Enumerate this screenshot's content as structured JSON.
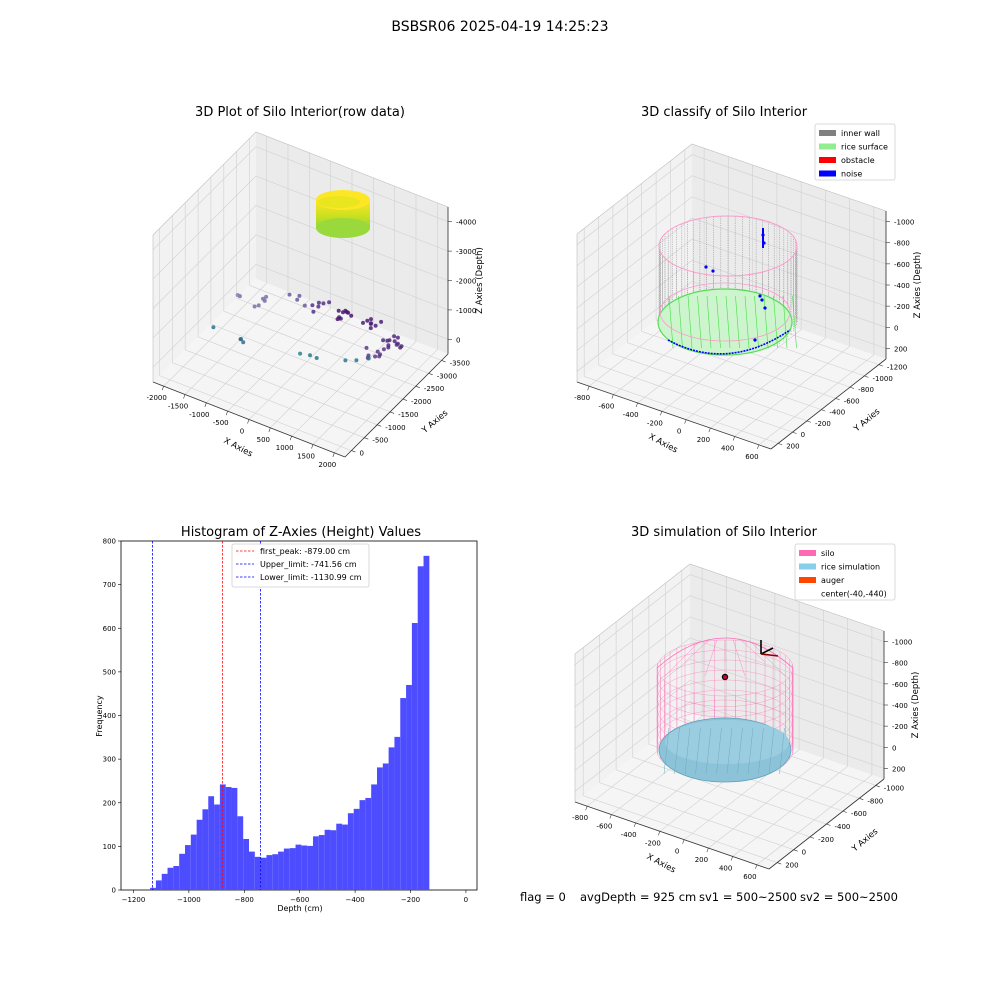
{
  "figure": {
    "suptitle": "BSBSR06 2025-04-19 14:25:23",
    "status_line": {
      "flag": "flag = 0",
      "avg_depth": "avgDepth = 925 cm",
      "sv1": "sv1 = 500~2500",
      "sv2": "sv2 = 500~2500"
    }
  },
  "chart_data": [
    {
      "type": "scatter",
      "kind": "3d",
      "title": "3D Plot of Silo Interior(row data)",
      "xlabel": "X Axies",
      "ylabel": "Y Axies",
      "zlabel": "Z Axies (Depth)",
      "x_ticks": [
        "-2000",
        "-1500",
        "-1000",
        "-500",
        "0",
        "500",
        "1000",
        "1500",
        "2000"
      ],
      "y_ticks": [
        "0",
        "-500",
        "-1000",
        "-1500",
        "-2000",
        "-2500",
        "-3000",
        "-3500"
      ],
      "z_ticks": [
        "0",
        "-1000",
        "-2000",
        "-3000",
        "-4000"
      ],
      "colormap": [
        "#440154",
        "#31688e",
        "#35b779",
        "#fde725"
      ]
    },
    {
      "type": "scatter",
      "kind": "3d",
      "title": "3D classify of Silo Interior",
      "xlabel": "X Axies",
      "ylabel": "Y Axies",
      "zlabel": "Z Axies (Depth)",
      "x_ticks": [
        "-800",
        "-600",
        "-400",
        "-200",
        "0",
        "200",
        "400",
        "600"
      ],
      "y_ticks": [
        "200",
        "0",
        "-200",
        "-400",
        "-600",
        "-800",
        "-1000",
        "-1200"
      ],
      "z_ticks": [
        "200",
        "0",
        "-200",
        "-400",
        "-600",
        "-800",
        "-1000"
      ],
      "legend": [
        {
          "label": "inner wall",
          "color": "#808080"
        },
        {
          "label": "rice surface",
          "color": "#90ee90"
        },
        {
          "label": "obstacle",
          "color": "#ff0000"
        },
        {
          "label": "noise",
          "color": "#0000ff"
        }
      ]
    },
    {
      "type": "bar",
      "kind": "histogram",
      "title": "Histogram of Z-Axies (Height) Values",
      "xlabel": "Depth (cm)",
      "ylabel": "Frequency",
      "xlim": [
        -1245,
        40
      ],
      "ylim": [
        0,
        800
      ],
      "x_ticks": [
        -1200,
        -1000,
        -800,
        -600,
        -400,
        -200,
        0
      ],
      "y_ticks": [
        0,
        100,
        200,
        300,
        400,
        500,
        600,
        700,
        800
      ],
      "bin_start": -1140,
      "bin_width": 21,
      "bar_color": "#4d4dff",
      "values": [
        5,
        22,
        37,
        51,
        55,
        83,
        103,
        127,
        161,
        185,
        215,
        196,
        242,
        236,
        234,
        169,
        117,
        88,
        76,
        74,
        80,
        82,
        88,
        95,
        96,
        104,
        102,
        101,
        123,
        126,
        138,
        137,
        152,
        150,
        176,
        186,
        206,
        211,
        242,
        281,
        290,
        327,
        351,
        440,
        470,
        612,
        742,
        766
      ],
      "vlines": [
        {
          "label": "first_peak: -879.00 cm",
          "x": -879.0,
          "color": "#ff0000"
        },
        {
          "label": "Upper_limit: -741.56 cm",
          "x": -741.56,
          "color": "#0000ff"
        },
        {
          "label": "Lower_limit: -1130.99 cm",
          "x": -1130.99,
          "color": "#0000ff"
        }
      ]
    },
    {
      "type": "scatter",
      "kind": "3d",
      "title": "3D simulation of Silo Interior",
      "xlabel": "X Axies",
      "ylabel": "Y Axies",
      "zlabel": "Z Axies (Depth)",
      "x_ticks": [
        "-800",
        "-600",
        "-400",
        "-200",
        "0",
        "200",
        "400",
        "600"
      ],
      "y_ticks": [
        "200",
        "0",
        "-200",
        "-400",
        "-600",
        "-800",
        "-1000"
      ],
      "z_ticks": [
        "200",
        "0",
        "-200",
        "-400",
        "-600",
        "-800",
        "-1000"
      ],
      "legend": [
        {
          "label": "silo",
          "color": "#ff69b4"
        },
        {
          "label": "rice simulation",
          "color": "#87ceeb"
        },
        {
          "label": "auger",
          "color": "#ff4500"
        },
        {
          "label": "center(-40,-440)",
          "color": ""
        }
      ]
    }
  ]
}
